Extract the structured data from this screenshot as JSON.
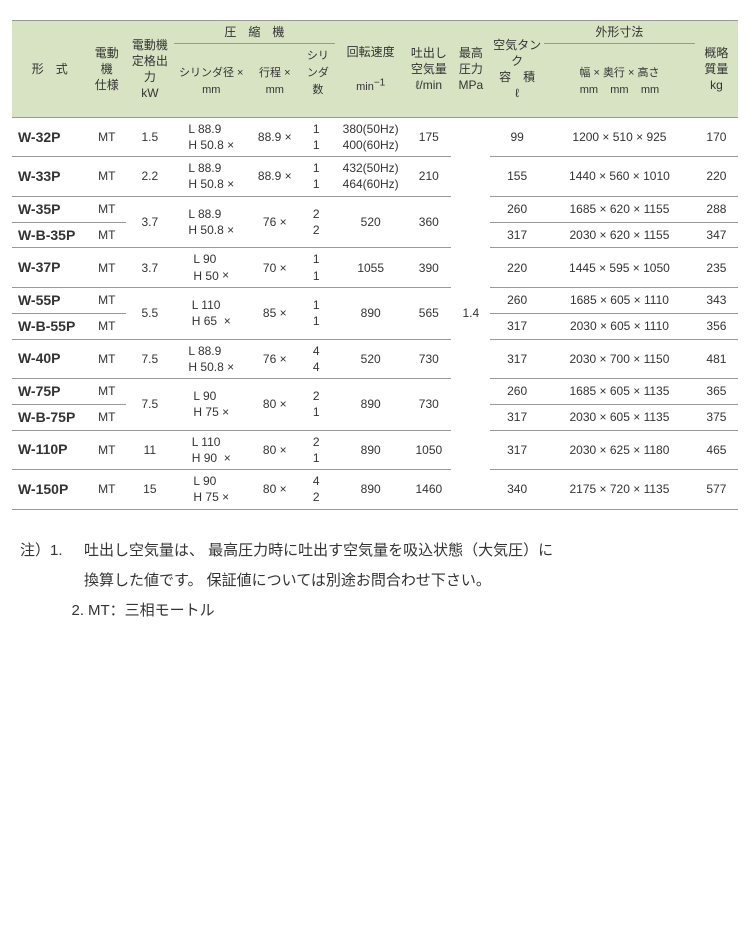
{
  "colors": {
    "header_bg": "#d7e3c3",
    "border": "#999999",
    "text": "#333333"
  },
  "header": {
    "model": "形　式",
    "motor_spec": "電動機\n仕様",
    "motor_kw": "電動機\n定格出力\nkW",
    "compressor_group": "圧　縮　機",
    "cyl_d": "シリンダ径 ×",
    "cyl_d_unit": "mm",
    "stroke": "行程 ×",
    "stroke_unit": "mm",
    "cyl_n": "シリンダ数",
    "rpm": "回転速度",
    "rpm_unit": "min⁻¹",
    "air": "吐出し\n空気量\nℓ/min",
    "press": "最高\n圧力\nMPa",
    "tank": "空気タンク\n容　積\nℓ",
    "dims_group": "外形寸法",
    "width": "幅 ×",
    "depth": "奥行 ×",
    "height": "高さ",
    "mm": "mm",
    "mass": "概略\n質量\nkg"
  },
  "pressure_mpa": "1.4",
  "rows": [
    {
      "model": "W-32P",
      "mt": "MT",
      "kw": "1.5",
      "cyl_d": "L 88.9\nH 50.8",
      "stroke": "88.9",
      "cyl_n": "1\n1",
      "rpm": "380(50Hz)\n400(60Hz)",
      "air": "175",
      "tank": "99",
      "dims": "1200 × 510 × 925",
      "mass": "170"
    },
    {
      "model": "W-33P",
      "mt": "MT",
      "kw": "2.2",
      "cyl_d": "L 88.9\nH 50.8",
      "stroke": "88.9",
      "cyl_n": "1\n1",
      "rpm": "432(50Hz)\n464(60Hz)",
      "air": "210",
      "tank": "155",
      "dims": "1440 × 560 × 1010",
      "mass": "220"
    },
    {
      "model": "W-35P",
      "mt": "MT",
      "kw_span": 2,
      "kw": "3.7",
      "cyl_d_span": 2,
      "cyl_d": "L 88.9\nH 50.8",
      "stroke_span": 2,
      "stroke": "76",
      "cyl_n_span": 2,
      "cyl_n": "2\n2",
      "rpm_span": 2,
      "rpm": "520",
      "air_span": 2,
      "air": "360",
      "tank": "260",
      "dims": "1685 × 620 × 1155",
      "mass": "288"
    },
    {
      "model": "W-B-35P",
      "mt": "MT",
      "tank": "317",
      "dims": "2030 × 620 × 1155",
      "mass": "347"
    },
    {
      "model": "W-37P",
      "mt": "MT",
      "kw": "3.7",
      "cyl_d": "L  90\nH  50",
      "stroke": "70",
      "cyl_n": "1\n1",
      "rpm": "1055",
      "air": "390",
      "tank": "220",
      "dims": "1445 × 595 × 1050",
      "mass": "235"
    },
    {
      "model": "W-55P",
      "mt": "MT",
      "kw_span": 2,
      "kw": "5.5",
      "cyl_d_span": 2,
      "cyl_d": "L 110\nH  65",
      "stroke_span": 2,
      "stroke": "85",
      "cyl_n_span": 2,
      "cyl_n": "1\n1",
      "rpm_span": 2,
      "rpm": "890",
      "air_span": 2,
      "air": "565",
      "tank": "260",
      "dims": "1685 × 605 × 1110",
      "mass": "343"
    },
    {
      "model": "W-B-55P",
      "mt": "MT",
      "tank": "317",
      "dims": "2030 × 605 × 1110",
      "mass": "356"
    },
    {
      "model": "W-40P",
      "mt": "MT",
      "kw": "7.5",
      "cyl_d": "L 88.9\nH 50.8",
      "stroke": "76",
      "cyl_n": "4\n4",
      "rpm": "520",
      "air": "730",
      "tank": "317",
      "dims": "2030 × 700 × 1150",
      "mass": "481"
    },
    {
      "model": "W-75P",
      "mt": "MT",
      "kw_span": 2,
      "kw": "7.5",
      "cyl_d_span": 2,
      "cyl_d": "L  90\nH  75",
      "stroke_span": 2,
      "stroke": "80",
      "cyl_n_span": 2,
      "cyl_n": "2\n1",
      "rpm_span": 2,
      "rpm": "890",
      "air_span": 2,
      "air": "730",
      "tank": "260",
      "dims": "1685 × 605 × 1135",
      "mass": "365"
    },
    {
      "model": "W-B-75P",
      "mt": "MT",
      "tank": "317",
      "dims": "2030 × 605 × 1135",
      "mass": "375"
    },
    {
      "model": "W-110P",
      "mt": "MT",
      "kw": "11",
      "cyl_d": "L 110\nH  90",
      "stroke": "80",
      "cyl_n": "2\n1",
      "rpm": "890",
      "air": "1050",
      "tank": "317",
      "dims": "2030 × 625 × 1180",
      "mass": "465"
    },
    {
      "model": "W-150P",
      "mt": "MT",
      "kw": "15",
      "cyl_d": "L  90\nH  75",
      "stroke": "80",
      "cyl_n": "4\n2",
      "rpm": "890",
      "air": "1460",
      "tank": "340",
      "dims": "2175 × 720 × 1135",
      "mass": "577"
    }
  ],
  "notes": {
    "lead": "注）",
    "items": [
      "吐出し空気量は、 最高圧力時に吐出す空気量を吸込状態（大気圧）に\n換算した値です。 保証値については別途お問合わせ下さい。",
      "MT：三相モートル"
    ]
  }
}
